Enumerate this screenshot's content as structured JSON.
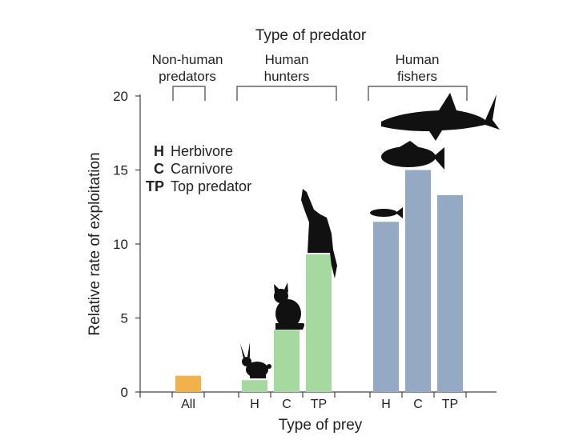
{
  "chart_data": {
    "type": "bar",
    "title": "Type of predator",
    "xlabel": "Type of prey",
    "ylabel": "Relative rate of exploitation",
    "ylim": [
      0,
      20
    ],
    "yticks": [
      0,
      5,
      10,
      15,
      20
    ],
    "grid": false,
    "groups": [
      {
        "label_lines": [
          "Non-human",
          "predators"
        ]
      },
      {
        "label_lines": [
          "Human",
          "hunters"
        ]
      },
      {
        "label_lines": [
          "Human",
          "fishers"
        ]
      }
    ],
    "categories": [
      "All",
      "H",
      "C",
      "TP",
      "H",
      "C",
      "TP"
    ],
    "values": [
      1.1,
      0.8,
      4.2,
      9.3,
      11.5,
      15.0,
      13.3
    ],
    "bar_colors": [
      "#F2B24A",
      "#A6D9A0",
      "#A6D9A0",
      "#A6D9A0",
      "#93A9C4",
      "#93A9C4",
      "#93A9C4"
    ],
    "bar_groups": [
      0,
      1,
      1,
      1,
      2,
      2,
      2
    ],
    "legend": [
      {
        "code": "H",
        "text": "Herbivore"
      },
      {
        "code": "C",
        "text": "Carnivore"
      },
      {
        "code": "TP",
        "text": "Top predator"
      }
    ],
    "silhouettes": [
      "rabbit-icon",
      "cat-icon",
      "wolf-icon",
      "small-fish-icon",
      "grouper-icon",
      "shark-icon"
    ]
  },
  "colors": {
    "axis": "#444444",
    "silhouette": "#111111"
  }
}
